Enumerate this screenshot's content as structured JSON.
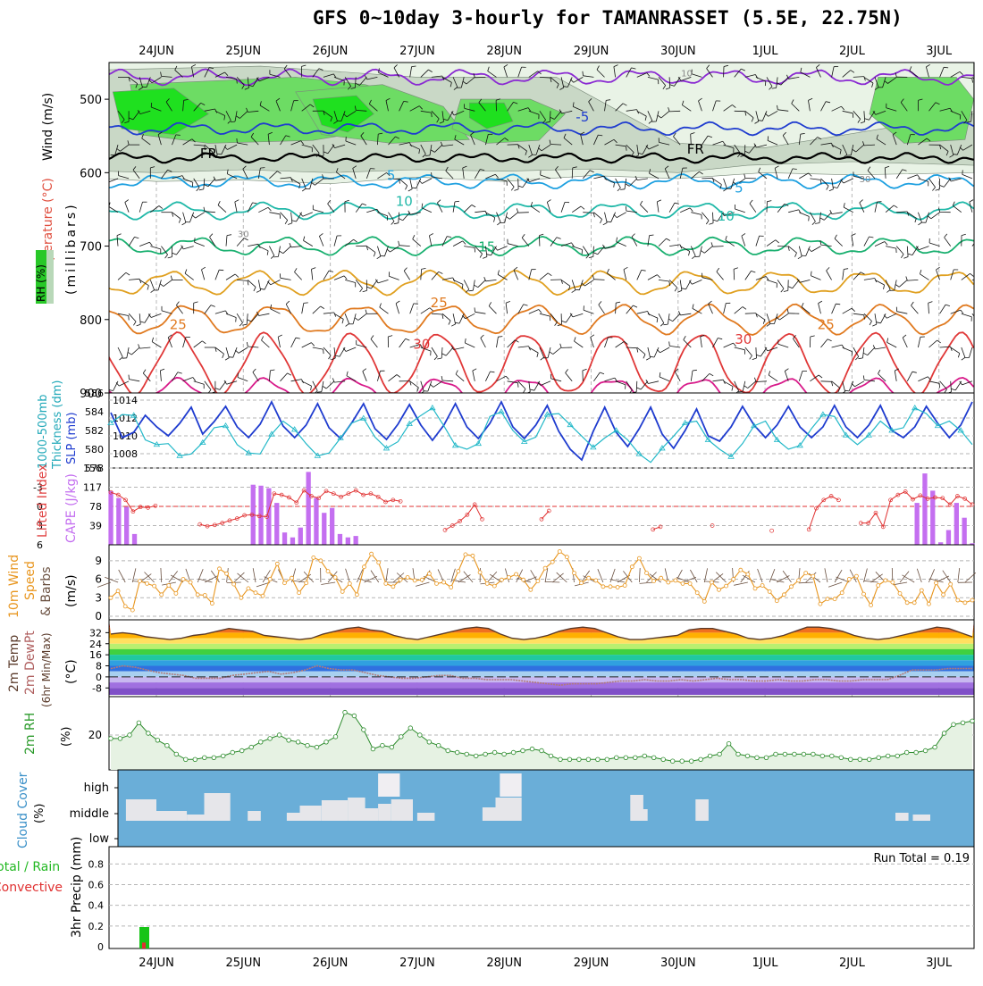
{
  "title": "GFS 0~10day 3-hourly for TAMANRASSET (5.5E, 22.75N)",
  "dates": [
    "24JUN",
    "25JUN",
    "26JUN",
    "27JUN",
    "28JUN",
    "29JUN",
    "30JUN",
    "1JUL",
    "2JUL",
    "3JUL"
  ],
  "chart_data": [
    {
      "type": "heatmap",
      "panel": "upper-air",
      "ylabels": [
        "Wind (m/s)",
        "Temperature (°C)",
        "RH (%)",
        "(millibars)"
      ],
      "yticks": [
        500,
        600,
        700,
        800,
        900
      ],
      "ylim": [
        900,
        450
      ],
      "isotherm_labels": [
        {
          "text": "FR",
          "t": 0.6,
          "p": 580
        },
        {
          "text": "FR",
          "t": 6.2,
          "p": 574
        },
        {
          "text": "-5",
          "t": 4.9,
          "p": 530
        },
        {
          "text": "5",
          "t": 2.7,
          "p": 610
        },
        {
          "text": "5",
          "t": 6.7,
          "p": 627
        },
        {
          "text": "10",
          "t": 2.85,
          "p": 645
        },
        {
          "text": "10",
          "t": 6.55,
          "p": 665
        },
        {
          "text": "15",
          "t": 3.8,
          "p": 707
        },
        {
          "text": "25",
          "t": 0.25,
          "p": 813
        },
        {
          "text": "25",
          "t": 3.25,
          "p": 783
        },
        {
          "text": "25",
          "t": 7.7,
          "p": 813
        },
        {
          "text": "30",
          "t": 3.05,
          "p": 840
        },
        {
          "text": "30",
          "t": 6.75,
          "p": 833
        },
        {
          "text": "10",
          "t": 6.1,
          "p": 469
        },
        {
          "text": "30",
          "t": 1.0,
          "p": 688
        },
        {
          "text": "30",
          "t": 8.15,
          "p": 613
        }
      ]
    },
    {
      "type": "line",
      "panel": "thickness-slp",
      "ylabels": [
        "1000-500mb",
        "Thickness (dm)",
        "SLP (mb)"
      ],
      "left_ticks": [
        578,
        580,
        582,
        584,
        586
      ],
      "right_ticks": [
        1008,
        1010,
        1012,
        1014
      ],
      "series": [
        {
          "name": "SLP (mb)",
          "color": "#1f3ccf",
          "values": [
            1012.6,
            1009.8,
            1010.4,
            1012.3,
            1011.0,
            1010.0,
            1011.4,
            1013.2,
            1010.2,
            1011.6,
            1013.3,
            1011.0,
            1009.8,
            1011.3,
            1013.8,
            1011.1,
            1009.8,
            1011.2,
            1013.6,
            1010.9,
            1009.7,
            1011.5,
            1013.6,
            1010.8,
            1009.6,
            1011.3,
            1013.5,
            1011.2,
            1009.5,
            1011.2,
            1013.6,
            1011.0,
            1009.7,
            1011.4,
            1013.8,
            1011.0,
            1009.7,
            1011.2,
            1013.4,
            1010.5,
            1008.5,
            1007.3,
            1010.5,
            1013.2,
            1010.4,
            1008.8,
            1010.8,
            1013.2,
            1010.2,
            1008.6,
            1010.6,
            1013.0,
            1010.0,
            1009.4,
            1011.0,
            1013.3,
            1011.2,
            1009.8,
            1011.2,
            1013.3,
            1011.0,
            1009.8,
            1011.0,
            1013.4,
            1011.0,
            1009.8,
            1011.2,
            1013.4,
            1010.6,
            1009.8,
            1011.0,
            1013.3,
            1011.4,
            1009.8,
            1011.2,
            1013.8
          ]
        },
        {
          "name": "1000-500mb Thickness (dm)",
          "color": "#22b8c8",
          "values": [
            582.8,
            583.7,
            583.6,
            581.0,
            580.5,
            580.6,
            579.3,
            579.5,
            580.7,
            582.3,
            582.5,
            580.5,
            579.6,
            579.5,
            581.6,
            583.0,
            582.1,
            580.6,
            579.3,
            579.6,
            581.2,
            582.8,
            583.3,
            581.3,
            580.1,
            580.8,
            582.7,
            583.6,
            584.4,
            582.5,
            580.4,
            580.0,
            580.6,
            583.5,
            584.0,
            582.0,
            580.8,
            581.3,
            583.7,
            583.8,
            582.6,
            581.4,
            580.2,
            581.2,
            582.0,
            581.0,
            579.5,
            578.6,
            580.1,
            581.4,
            582.8,
            583.0,
            581.0,
            580.0,
            579.2,
            580.6,
            582.5,
            583.0,
            581.0,
            580.0,
            580.4,
            582.2,
            583.7,
            583.5,
            581.5,
            580.5,
            581.5,
            583.0,
            582.0,
            582.3,
            584.4,
            583.8,
            582.5,
            583.0,
            582.0,
            580.5
          ]
        }
      ]
    },
    {
      "type": "bar",
      "panel": "cape-lifted-index",
      "ylabels": [
        "Lifted Index",
        "CAPE (J/kg)"
      ],
      "left_ticks": [
        -3,
        0,
        3,
        6
      ],
      "right_ticks": [
        39,
        78,
        117,
        156
      ],
      "series": [
        {
          "name": "CAPE (J/kg)",
          "color": "#c46ff0",
          "values": [
            109,
            95,
            77,
            22,
            0,
            0,
            0,
            0,
            0,
            0,
            0,
            0,
            0,
            0,
            0,
            0,
            0,
            0,
            122,
            120,
            115,
            85,
            25,
            15,
            35,
            148,
            95,
            65,
            75,
            22,
            15,
            18,
            0,
            0,
            0,
            0,
            0,
            0,
            0,
            0,
            0,
            0,
            0,
            0,
            0,
            0,
            0,
            0,
            0,
            0,
            0,
            0,
            0,
            0,
            0,
            0,
            0,
            0,
            0,
            0,
            0,
            0,
            0,
            0,
            0,
            0,
            0,
            0,
            0,
            0,
            0,
            0,
            0,
            0,
            0,
            0,
            0,
            0,
            0,
            0,
            0,
            0,
            0,
            0,
            0,
            0,
            0,
            0,
            0,
            0,
            0,
            0,
            0,
            0,
            0,
            0,
            0,
            0,
            0,
            0,
            0,
            0,
            85,
            145,
            110,
            5,
            30,
            85,
            55,
            3
          ]
        },
        {
          "name": "Lifted Index",
          "color": "#e03030",
          "values": [
            -2.2,
            -1.8,
            -1.0,
            0.8,
            0.1,
            0.2,
            -0.1,
            null,
            null,
            null,
            null,
            null,
            2.8,
            3.1,
            2.9,
            2.6,
            2.2,
            1.9,
            1.4,
            1.3,
            1.5,
            1.6,
            -2.0,
            -1.8,
            -1.4,
            -0.6,
            -2.5,
            -1.6,
            -1.3,
            -2.4,
            -2.0,
            -1.5,
            -2.0,
            -2.5,
            -1.8,
            -2.0,
            -1.5,
            -0.7,
            -1.0,
            -0.8,
            null,
            null,
            null,
            null,
            null,
            3.7,
            3.0,
            2.3,
            1.3,
            -0.3,
            2.0,
            null,
            null,
            null,
            null,
            null,
            null,
            null,
            2.0,
            0.7,
            null,
            null,
            null,
            null,
            null,
            null,
            null,
            null,
            null,
            null,
            null,
            null,
            null,
            3.6,
            3.2,
            null,
            null,
            null,
            null,
            null,
            null,
            3.0,
            null,
            null,
            null,
            null,
            null,
            null,
            null,
            3.8,
            null,
            null,
            null,
            null,
            3.6,
            0.3,
            -1.0,
            -1.6,
            -1.0,
            null,
            null,
            2.6,
            2.6,
            1.0,
            3.2,
            -1.0,
            -1.8,
            -2.3,
            -1.1,
            -1.7,
            -1.2,
            -1.4,
            -1.3,
            -0.3,
            -1.6,
            -1.2,
            -0.3
          ]
        }
      ]
    },
    {
      "type": "line",
      "panel": "10m-wind",
      "ylabels": [
        "10m Wind",
        "Speed",
        "& Barbs",
        "(m/s)"
      ],
      "yticks": [
        0,
        3,
        6,
        9
      ],
      "series": [
        {
          "name": "Speed (m/s)",
          "color": "#e8961f",
          "values": [
            3.0,
            4.1,
            1.6,
            1.0,
            5.7,
            5.3,
            4.9,
            3.5,
            5.0,
            3.7,
            6.0,
            5.5,
            3.5,
            3.4,
            2.1,
            7.7,
            6.9,
            5.2,
            3.0,
            4.5,
            3.8,
            3.3,
            6.0,
            8.5,
            5.4,
            6.2,
            3.8,
            5.4,
            9.5,
            9.0,
            7.3,
            6.3,
            4.0,
            5.3,
            3.5,
            8.0,
            10.1,
            8.7,
            5.3,
            4.8,
            5.9,
            6.3,
            5.8,
            5.9,
            6.9,
            5.3,
            5.5,
            4.7,
            7.3,
            10.0,
            9.8,
            7.1,
            5.3,
            4.9,
            5.9,
            6.3,
            6.8,
            5.9,
            4.3,
            5.7,
            7.8,
            8.8,
            10.5,
            9.6,
            7.0,
            5.4,
            6.2,
            5.8,
            4.8,
            4.8,
            4.7,
            5.0,
            8.0,
            9.4,
            7.0,
            5.7,
            6.2,
            5.5,
            5.8,
            5.3,
            5.3,
            3.8,
            2.4,
            5.5,
            4.3,
            4.9,
            6.0,
            7.5,
            6.8,
            4.5,
            5.0,
            4.0,
            2.5,
            3.5,
            4.8,
            5.8,
            7.0,
            6.5,
            2.0,
            2.8,
            2.8,
            3.8,
            6.0,
            6.5,
            3.6,
            1.8,
            5.0,
            5.8,
            5.5,
            3.7,
            2.2,
            2.2,
            4.2,
            2.0,
            5.4,
            3.5,
            5.2,
            2.6,
            2.2,
            2.6
          ]
        }
      ]
    },
    {
      "type": "line",
      "panel": "2m-temp",
      "ylabels": [
        "2m Temp",
        "2m DewPt",
        "(6hr Min/Max)",
        "(°C)"
      ],
      "yticks": [
        -8,
        0,
        8,
        16,
        24,
        32
      ],
      "series": [
        {
          "name": "2m Temp",
          "color": "#5a3a2a",
          "values": [
            31,
            32,
            31,
            29,
            28,
            27,
            28,
            30,
            31,
            33,
            35,
            34,
            33,
            30,
            29,
            28,
            27,
            28,
            31,
            33,
            35,
            36,
            34,
            33,
            30,
            28,
            27,
            29,
            31,
            33,
            35,
            36,
            35,
            31,
            28,
            27,
            28,
            30,
            33,
            35,
            36,
            35,
            32,
            29,
            27,
            27,
            28,
            29,
            30,
            34,
            35,
            35,
            33,
            31,
            28,
            27,
            28,
            30,
            33,
            36,
            36,
            35,
            33,
            30,
            28,
            27,
            28,
            30,
            32,
            34,
            36,
            35,
            32,
            29
          ]
        },
        {
          "name": "2m DewPt",
          "color": "#b07a7a",
          "values": [
            6,
            8,
            7,
            5,
            3,
            2,
            1,
            -1,
            -1,
            -1,
            1,
            2,
            3,
            4,
            2,
            3,
            5,
            8,
            6,
            5,
            5,
            3,
            1,
            0,
            -1,
            -1,
            0,
            1,
            1,
            -1,
            -1,
            -2,
            -2,
            -2,
            -3,
            -4,
            -5,
            -6,
            -5,
            -5,
            -5,
            -4,
            -3,
            -3,
            -2,
            -3,
            -3,
            -2,
            -3,
            -2,
            -1,
            -2,
            -2,
            -3,
            -3,
            -2,
            -3,
            -3,
            -2,
            -2,
            -3,
            -3,
            -2,
            -2,
            -2,
            1,
            5,
            5,
            5,
            6,
            6,
            6
          ]
        }
      ]
    },
    {
      "type": "area",
      "panel": "2m-rh",
      "ylabels": [
        "2m RH",
        "(%)"
      ],
      "yticks": [
        20
      ],
      "series": [
        {
          "name": "2m RH (%)",
          "color": "#2a8a2a",
          "values": [
            18,
            18,
            20,
            27,
            21,
            17,
            14,
            9,
            6,
            6,
            7,
            7,
            8,
            10,
            11,
            13,
            16,
            18,
            20,
            17,
            16,
            14,
            13,
            16,
            19,
            33,
            31,
            23,
            12,
            14,
            13,
            19,
            24,
            20,
            16,
            14,
            11,
            10,
            9,
            8,
            9,
            10,
            9,
            10,
            11,
            12,
            11,
            8,
            6,
            6,
            6,
            6,
            6,
            6,
            7,
            7,
            7,
            8,
            7,
            6,
            5,
            5,
            5,
            6,
            8,
            9,
            15,
            9,
            8,
            7,
            7,
            9,
            9,
            9,
            9,
            9,
            8,
            8,
            7,
            6,
            6,
            6,
            7,
            8,
            8,
            10,
            10,
            11,
            13,
            21,
            26,
            27,
            28
          ]
        }
      ]
    },
    {
      "type": "heatmap",
      "panel": "cloud-cover",
      "ylabels": [
        "Cloud Cover",
        "(%)"
      ],
      "yticks": [
        "high",
        "middle",
        "low"
      ]
    },
    {
      "type": "bar",
      "panel": "precip",
      "ylabels": [
        "Total / Rain",
        "Convective",
        "3hr Precip (mm)"
      ],
      "yticks": [
        0,
        0.2,
        0.4,
        0.6,
        0.8
      ],
      "ylim": [
        0,
        1.0
      ],
      "run_total_label": "Run Total = 0.19",
      "series": [
        {
          "name": "Total / Rain",
          "color": "#16c416",
          "values": [
            0,
            0,
            0,
            0,
            0.19
          ]
        },
        {
          "name": "Convective",
          "color": "#e03030",
          "values": [
            0,
            0,
            0,
            0,
            0.04
          ]
        }
      ]
    }
  ]
}
